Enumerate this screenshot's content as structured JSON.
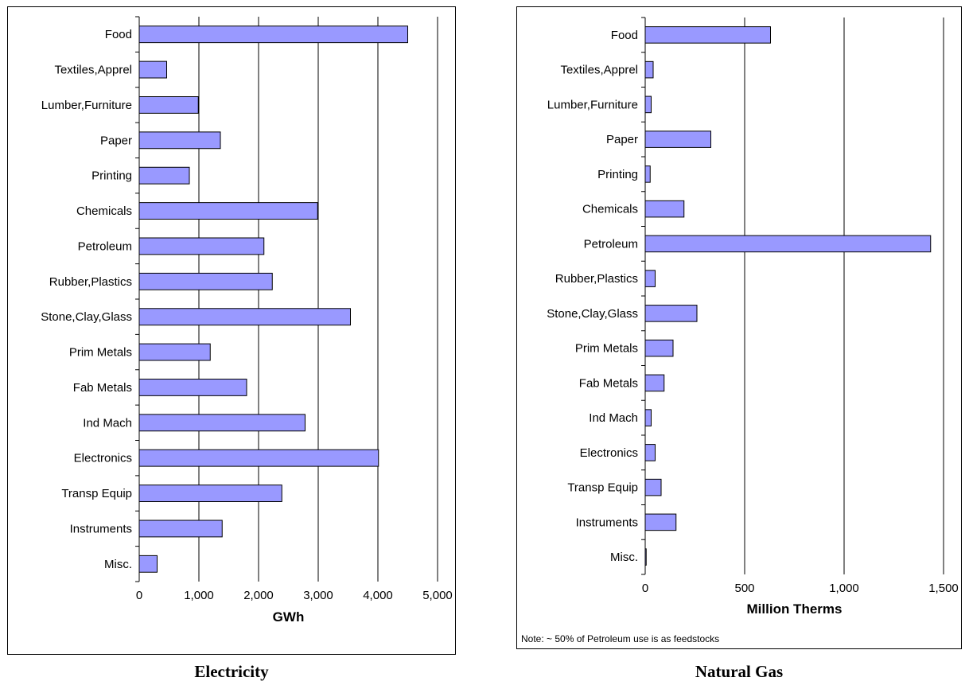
{
  "chart_data": [
    {
      "type": "bar",
      "orientation": "horizontal",
      "title": "Electricity",
      "xlabel": "GWh",
      "ylabel": "",
      "categories": [
        "Food",
        "Textiles,Apprel",
        "Lumber,Furniture",
        "Paper",
        "Printing",
        "Chemicals",
        "Petroleum",
        "Rubber,Plastics",
        "Stone,Clay,Glass",
        "Prim Metals",
        "Fab Metals",
        "Ind Mach",
        "Electronics",
        "Transp Equip",
        "Instruments",
        "Misc."
      ],
      "values": [
        4500,
        460,
        990,
        1360,
        840,
        2990,
        2090,
        2230,
        3540,
        1190,
        1800,
        2780,
        4010,
        2390,
        1390,
        300
      ],
      "xlim": [
        0,
        5000
      ],
      "xticks": [
        "0",
        "1,000",
        "2,000",
        "3,000",
        "4,000",
        "5,000"
      ],
      "xtick_values": [
        0,
        1000,
        2000,
        3000,
        4000,
        5000
      ],
      "grid": "vertical",
      "bar_color": "#9999ff"
    },
    {
      "type": "bar",
      "orientation": "horizontal",
      "title": "Natural Gas",
      "xlabel": "Million Therms",
      "ylabel": "",
      "note": "Note: ~ 50% of Petroleum use is as feedstocks",
      "categories": [
        "Food",
        "Textiles,Apprel",
        "Lumber,Furniture",
        "Paper",
        "Printing",
        "Chemicals",
        "Petroleum",
        "Rubber,Plastics",
        "Stone,Clay,Glass",
        "Prim Metals",
        "Fab Metals",
        "Ind Mach",
        "Electronics",
        "Transp Equip",
        "Instruments",
        "Misc."
      ],
      "values": [
        630,
        40,
        30,
        330,
        25,
        195,
        1435,
        50,
        260,
        140,
        95,
        30,
        50,
        80,
        155,
        5
      ],
      "xlim": [
        0,
        1500
      ],
      "xticks": [
        "0",
        "500",
        "1,000",
        "1,500"
      ],
      "xtick_values": [
        0,
        500,
        1000,
        1500
      ],
      "grid": "vertical",
      "bar_color": "#9999ff"
    }
  ]
}
